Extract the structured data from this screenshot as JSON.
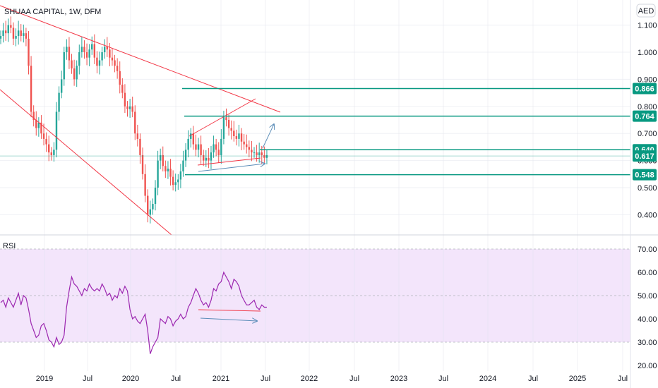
{
  "header": {
    "symbol": "SHUAA CAPITAL, 1W, DFM",
    "currency": "AED"
  },
  "rsi_label": "RSI",
  "colors": {
    "up": "#26a69a",
    "down": "#ef5350",
    "level": "#089981",
    "trend": "#f23645",
    "arrow": "#5b8db8",
    "rsi_line": "#9c27b0",
    "rsi_band": "#f3e5fb",
    "grid": "#e0e3eb",
    "text": "#131722"
  },
  "chart_data": [
    {
      "type": "candlestick",
      "title": "SHUAA CAPITAL, 1W, DFM",
      "ylabel": "AED",
      "x_ticks": [
        "2019",
        "Jul",
        "2020",
        "Jul",
        "2021",
        "Jul",
        "2022",
        "Jul",
        "2023",
        "Jul",
        "2024",
        "Jul",
        "2025",
        "Jul"
      ],
      "y_ticks": [
        "1.100",
        "1.000",
        "0.900",
        "0.800",
        "0.700",
        "0.600",
        "0.500",
        "0.400"
      ],
      "ylim": [
        0.35,
        1.13
      ],
      "price_levels": [
        {
          "value": 0.866,
          "label": "0.866"
        },
        {
          "value": 0.764,
          "label": "0.764"
        },
        {
          "value": 0.64,
          "label": "0.640"
        },
        {
          "value": 0.617,
          "label": "0.617"
        },
        {
          "value": 0.548,
          "label": "0.548"
        }
      ],
      "closes": [
        1.06,
        1.08,
        1.07,
        1.1,
        1.09,
        1.05,
        1.06,
        1.08,
        1.06,
        1.07,
        1.05,
        0.95,
        0.78,
        0.75,
        0.72,
        0.74,
        0.7,
        0.68,
        0.66,
        0.63,
        0.62,
        0.64,
        0.78,
        0.85,
        0.9,
        1.0,
        1.02,
        0.97,
        0.94,
        0.9,
        0.95,
        1.0,
        1.02,
        1.0,
        0.98,
        1.01,
        1.03,
        0.98,
        0.95,
        0.97,
        1.0,
        1.02,
        1.01,
        0.98,
        0.97,
        0.95,
        0.93,
        0.88,
        0.85,
        0.8,
        0.79,
        0.8,
        0.78,
        0.7,
        0.68,
        0.62,
        0.55,
        0.47,
        0.4,
        0.42,
        0.44,
        0.5,
        0.6,
        0.62,
        0.58,
        0.56,
        0.57,
        0.54,
        0.51,
        0.52,
        0.53,
        0.56,
        0.6,
        0.64,
        0.68,
        0.7,
        0.66,
        0.64,
        0.66,
        0.62,
        0.6,
        0.61,
        0.6,
        0.63,
        0.66,
        0.64,
        0.62,
        0.68,
        0.76,
        0.75,
        0.72,
        0.71,
        0.69,
        0.68,
        0.7,
        0.67,
        0.66,
        0.65,
        0.64,
        0.63,
        0.63,
        0.62,
        0.63,
        0.62,
        0.61,
        0.62
      ]
    },
    {
      "type": "line",
      "title": "RSI",
      "y_ticks": [
        "70.00",
        "60.00",
        "50.00",
        "40.00",
        "30.00",
        "20.00"
      ],
      "ylim": [
        18,
        72
      ],
      "band": [
        30,
        70
      ],
      "values": [
        47,
        48,
        45,
        49,
        47,
        45,
        48,
        51,
        46,
        50,
        49,
        44,
        38,
        35,
        32,
        33,
        37,
        38,
        35,
        31,
        30,
        28,
        32,
        29,
        30,
        33,
        45,
        52,
        58,
        55,
        54,
        52,
        50,
        53,
        52,
        55,
        53,
        52,
        53,
        52,
        55,
        53,
        50,
        51,
        48,
        50,
        49,
        53,
        51,
        54,
        52,
        44,
        40,
        41,
        39,
        38,
        40,
        42,
        35,
        25,
        28,
        30,
        32,
        40,
        39,
        38,
        41,
        40,
        37,
        39,
        40,
        42,
        40,
        41,
        45,
        47,
        50,
        53,
        51,
        48,
        46,
        47,
        45,
        48,
        53,
        52,
        55,
        56,
        60,
        58,
        56,
        53,
        57,
        56,
        54,
        50,
        48,
        46,
        46,
        47,
        48,
        45,
        44,
        46,
        45,
        45
      ]
    }
  ]
}
